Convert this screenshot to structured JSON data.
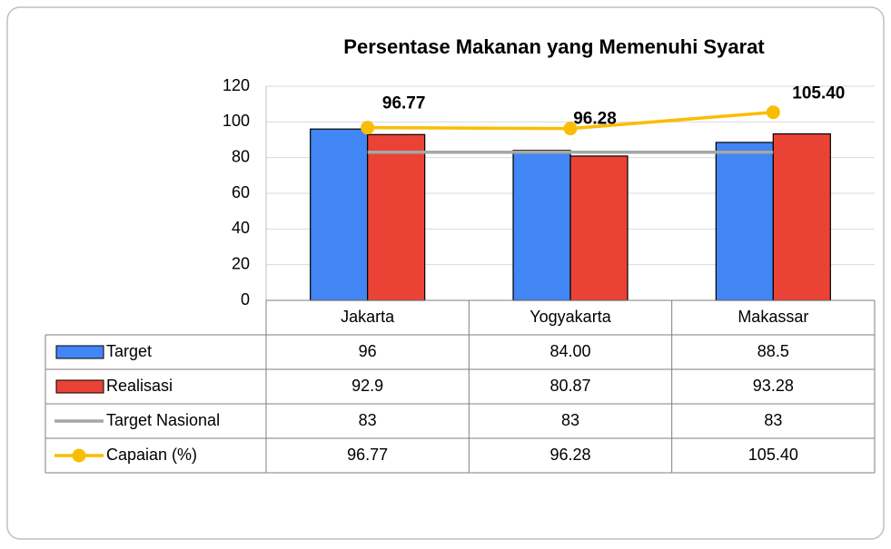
{
  "chart_data": {
    "type": "bar",
    "title": "Persentase Makanan yang Memenuhi Syarat",
    "categories": [
      "Jakarta",
      "Yogyakarta",
      "Makassar"
    ],
    "series": [
      {
        "name": "Target",
        "type": "bar",
        "color": "#4285f4",
        "values": [
          96,
          84,
          88.5
        ],
        "value_labels": [
          "96",
          "84.00",
          "88.5"
        ]
      },
      {
        "name": "Realisasi",
        "type": "bar",
        "color": "#ea4335",
        "values": [
          92.9,
          80.87,
          93.28
        ]
      },
      {
        "name": "Target Nasional",
        "type": "line",
        "color": "#a6a6a6",
        "values": [
          83,
          83,
          83
        ]
      },
      {
        "name": "Capaian (%)",
        "type": "line",
        "color": "#fbbc04",
        "markers": true,
        "values": [
          96.77,
          96.28,
          105.4
        ],
        "value_labels": [
          "96.77",
          "96.28",
          "105.40"
        ],
        "data_labels": true
      }
    ],
    "ylim": [
      0,
      120
    ],
    "yticks": [
      0,
      20,
      40,
      60,
      80,
      100,
      120
    ],
    "grid": true,
    "legend": "data-table"
  }
}
